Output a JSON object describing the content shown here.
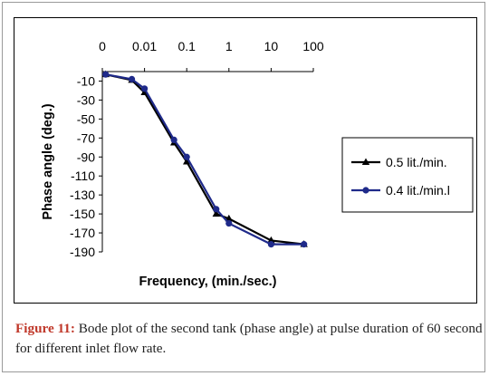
{
  "chart_data": {
    "type": "line",
    "xscale": "log",
    "x_tick_labels": [
      "0",
      "0.01",
      "0.1",
      "1",
      "10",
      "100"
    ],
    "y_tick_labels": [
      "-10",
      "-30",
      "-50",
      "-70",
      "-90",
      "-110",
      "-130",
      "-150",
      "-170",
      "-190"
    ],
    "ylabel": "Phase angle (deg.)",
    "xlabel": "Frequency, (min./sec.)",
    "ylim": [
      -190,
      0
    ],
    "grid": false,
    "legend_position": "right",
    "series": [
      {
        "name": "0.5 lit./min.",
        "marker": "triangle",
        "color": "#000000",
        "x": [
          0.0012,
          0.005,
          0.01,
          0.05,
          0.1,
          0.5,
          1,
          10,
          60
        ],
        "y": [
          -3,
          -9,
          -22,
          -75,
          -95,
          -150,
          -155,
          -178,
          -182
        ]
      },
      {
        "name": "0.4 lit./min.l",
        "marker": "circle",
        "color": "#1f2a8a",
        "x": [
          0.0012,
          0.005,
          0.01,
          0.05,
          0.1,
          0.5,
          1,
          10,
          60
        ],
        "y": [
          -3,
          -8,
          -18,
          -72,
          -90,
          -145,
          -160,
          -182,
          -182
        ]
      }
    ]
  },
  "caption": {
    "label": "Figure 11:",
    "text": "Bode plot of the second tank (phase angle) at pulse duration of 60 second for different inlet flow rate."
  }
}
